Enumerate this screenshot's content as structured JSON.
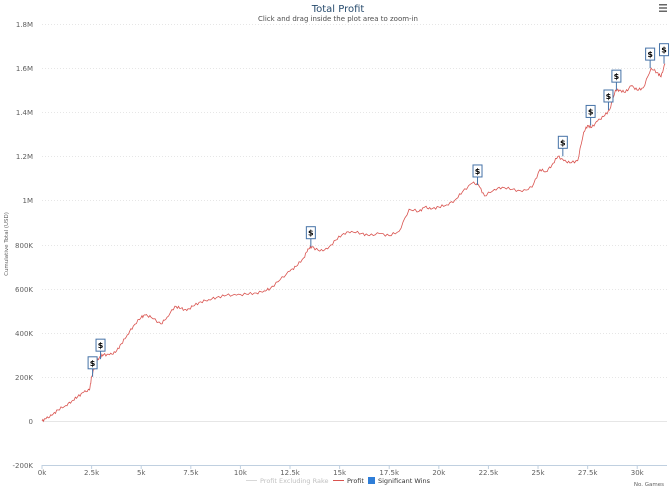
{
  "title": "Total Profit",
  "subtitle": "Click and drag inside the plot area to zoom-in",
  "menu_icon": "hamburger-menu-icon",
  "colors": {
    "title": "#274b6d",
    "profit_line": "#d9534f",
    "excluding_rake_line": "#e6e6e6",
    "flag_border": "#4572a7",
    "legend_marker": "#2f7ed8",
    "grid": "#e6e6e6"
  },
  "chart_data": {
    "type": "line",
    "title": "Total Profit",
    "subtitle": "Click and drag inside the plot area to zoom-in",
    "ylabel": "Cumulative Total (USD)",
    "xlabel": "No. Games",
    "xlim": [
      0,
      31500
    ],
    "ylim": [
      -200000,
      1800000
    ],
    "x_ticks": [
      0,
      2500,
      5000,
      7500,
      10000,
      12500,
      15000,
      17500,
      20000,
      22500,
      25000,
      27500,
      30000
    ],
    "x_tick_labels": [
      "0k",
      "2.5k",
      "5k",
      "7.5k",
      "10k",
      "12.5k",
      "15k",
      "17.5k",
      "20k",
      "22.5k",
      "25k",
      "27.5k",
      "30k"
    ],
    "y_ticks": [
      -200000,
      0,
      200000,
      400000,
      600000,
      800000,
      1000000,
      1200000,
      1400000,
      1600000,
      1800000
    ],
    "y_tick_labels": [
      "-200K",
      "0",
      "200K",
      "400K",
      "600K",
      "800K",
      "1M",
      "1.2M",
      "1.4M",
      "1.6M",
      "1.8M"
    ],
    "grid": true,
    "legend_position": "bottom",
    "series": [
      {
        "name": "Profit Excluding Rake",
        "visible": false,
        "x": [],
        "y": []
      },
      {
        "name": "Profit",
        "visible": true,
        "x": [
          0,
          200,
          500,
          800,
          1200,
          1500,
          1800,
          2100,
          2400,
          2500,
          2700,
          2900,
          3100,
          3400,
          3700,
          4000,
          4300,
          4600,
          5000,
          5200,
          5500,
          6000,
          6300,
          6700,
          7000,
          7300,
          7600,
          8000,
          8400,
          8800,
          9300,
          9800,
          10300,
          10800,
          11200,
          11500,
          12000,
          12500,
          12800,
          13200,
          13400,
          13600,
          14000,
          14400,
          14800,
          15200,
          15600,
          16100,
          16500,
          17000,
          17500,
          18000,
          18500,
          19000,
          19300,
          19600,
          20000,
          20400,
          20800,
          21200,
          21700,
          22000,
          22300,
          22800,
          23200,
          23700,
          24200,
          24700,
          25100,
          25400,
          25700,
          26000,
          26300,
          26600,
          27000,
          27300,
          27500,
          27700,
          28000,
          28300,
          28600,
          28900,
          29100,
          29400,
          29700,
          30000,
          30300,
          30700,
          31000,
          31200,
          31400
        ],
        "y": [
          0,
          10000,
          25000,
          50000,
          70000,
          90000,
          110000,
          130000,
          140000,
          200000,
          260000,
          290000,
          300000,
          300000,
          310000,
          350000,
          390000,
          430000,
          470000,
          480000,
          470000,
          440000,
          470000,
          520000,
          510000,
          500000,
          520000,
          540000,
          550000,
          560000,
          570000,
          570000,
          575000,
          580000,
          590000,
          600000,
          640000,
          680000,
          700000,
          740000,
          780000,
          790000,
          770000,
          780000,
          820000,
          850000,
          860000,
          850000,
          840000,
          850000,
          840000,
          860000,
          960000,
          950000,
          970000,
          960000,
          970000,
          980000,
          1000000,
          1040000,
          1080000,
          1070000,
          1020000,
          1050000,
          1060000,
          1050000,
          1040000,
          1060000,
          1140000,
          1130000,
          1160000,
          1200000,
          1180000,
          1170000,
          1180000,
          1310000,
          1340000,
          1330000,
          1360000,
          1380000,
          1410000,
          1500000,
          1500000,
          1490000,
          1520000,
          1500000,
          1510000,
          1600000,
          1580000,
          1560000,
          1620000
        ]
      }
    ],
    "significant_wins": {
      "name": "Significant Wins",
      "label": "$",
      "x": [
        2550,
        2950,
        13550,
        21950,
        26250,
        27650,
        28550,
        28950,
        30650,
        31350
      ],
      "y": [
        200000,
        280000,
        790000,
        1070000,
        1200000,
        1340000,
        1410000,
        1500000,
        1600000,
        1620000
      ]
    }
  }
}
